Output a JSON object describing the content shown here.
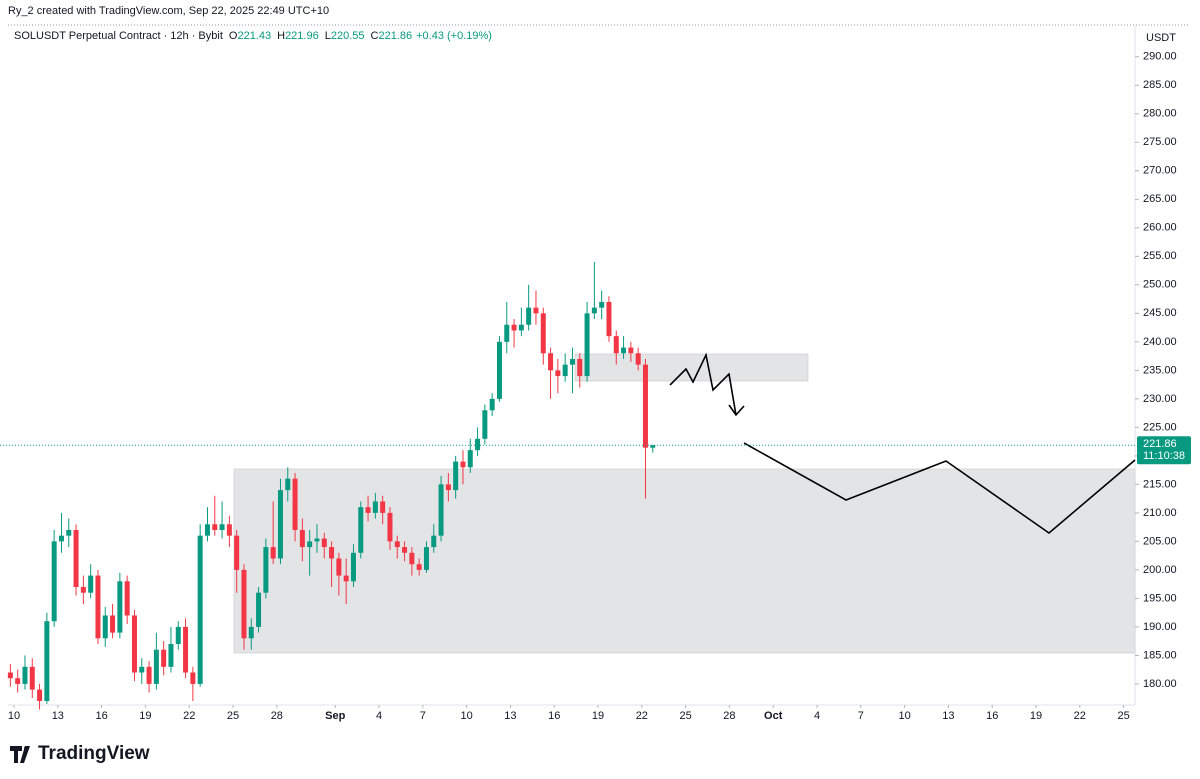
{
  "header": "Ry_2 created with TradingView.com, Sep 22, 2025 22:49 UTC+10",
  "legend": {
    "symbol": "SOLUSDT Perpetual Contract · 12h · Bybit",
    "ohlc": [
      {
        "label": "O",
        "value": "221.43"
      },
      {
        "label": "H",
        "value": "221.96"
      },
      {
        "label": "L",
        "value": "220.55"
      },
      {
        "label": "C",
        "value": "221.86"
      }
    ],
    "change": "+0.43 (+0.19%)"
  },
  "brand": "TradingView",
  "chart_data": {
    "type": "candlestick",
    "y_axis_label": "USDT",
    "up_color": "#089981",
    "down_color": "#f23645",
    "last_price": {
      "value": 221.86,
      "label": "221.86",
      "countdown": "11:10:38"
    },
    "x": [
      -0.5,
      0,
      0.5,
      1,
      1.5,
      2,
      2.5,
      3,
      3.5,
      4,
      4.5,
      5,
      5.5,
      6,
      6.5,
      7,
      7.5,
      8,
      8.5,
      9,
      9.5,
      10,
      10.5,
      11,
      11.5,
      12,
      12.5,
      13,
      13.5,
      14,
      14.5,
      15,
      15.5,
      16,
      16.5,
      17,
      17.5,
      18,
      18.5,
      19,
      19.5,
      20,
      20.5,
      21,
      21.5,
      22,
      22.5,
      23,
      23.5,
      24,
      24.5,
      25,
      25.5,
      26,
      26.5,
      27,
      27.5,
      28,
      28.5,
      29,
      29.5,
      30,
      30.5,
      31,
      31.5,
      32,
      32.5,
      33,
      33.5,
      34,
      34.5,
      35,
      35.5,
      36,
      36.5,
      37,
      37.5,
      38,
      38.5,
      39,
      39.5,
      40,
      40.5,
      41,
      41.5,
      42,
      42.5,
      43,
      43.5
    ],
    "open": [
      182,
      181,
      180,
      183,
      179,
      177,
      191,
      205,
      206,
      207,
      197,
      196,
      199,
      188,
      192,
      189,
      198,
      192,
      182,
      183,
      180,
      186,
      183,
      187,
      190,
      182,
      180,
      206,
      208,
      207,
      208,
      206,
      200,
      188,
      190,
      196,
      204,
      202,
      214,
      216,
      207,
      204,
      205,
      205.5,
      204,
      202,
      199,
      198,
      203,
      211,
      210,
      212,
      210,
      205,
      204,
      203,
      201,
      200,
      204,
      206,
      215,
      214,
      219,
      218,
      221,
      223,
      228,
      230,
      240,
      243,
      242,
      243,
      246,
      245,
      238,
      235,
      234,
      236,
      237,
      234,
      245,
      246,
      247,
      241,
      238,
      239,
      238,
      236,
      221.43
    ],
    "high": [
      183.5,
      182.5,
      185,
      184.5,
      180,
      192.5,
      207,
      210,
      209,
      208,
      199,
      201,
      200,
      193.5,
      194,
      199.5,
      199,
      193,
      184.5,
      184,
      189,
      187.5,
      190,
      191,
      191.5,
      183,
      208,
      211,
      213,
      212,
      209.5,
      207,
      201,
      191.5,
      197,
      205.5,
      212,
      216,
      218,
      217,
      209,
      207,
      208,
      206.5,
      205,
      203,
      202,
      204.5,
      212,
      213,
      213.5,
      213,
      211,
      206,
      205,
      204,
      202,
      205,
      208,
      216.5,
      217,
      220,
      221,
      223,
      225,
      229,
      231,
      241,
      247,
      244,
      246,
      250,
      249,
      246,
      239,
      237,
      238,
      239,
      238,
      247,
      254,
      249,
      248,
      242,
      241,
      240,
      239,
      237,
      221.96
    ],
    "low": [
      179.5,
      178.5,
      179,
      177.5,
      175.5,
      176.5,
      190,
      203,
      204,
      195.5,
      194,
      195,
      187,
      186.5,
      188,
      188,
      190.5,
      180.5,
      180,
      178.5,
      179,
      181.5,
      182,
      186,
      181,
      177,
      179.5,
      205,
      206,
      205.5,
      204,
      196,
      186,
      186,
      189,
      195,
      201,
      201,
      212,
      205,
      201.5,
      199,
      203,
      202,
      197,
      195.5,
      194,
      197,
      202,
      208.5,
      209,
      208,
      203.5,
      202,
      201.5,
      199,
      199,
      199.5,
      203,
      205,
      212,
      212.5,
      215,
      217,
      220,
      222,
      227,
      229.5,
      238,
      239,
      241,
      242,
      243,
      236,
      230,
      231,
      233,
      231,
      232,
      233,
      244,
      244,
      240,
      236,
      237,
      236.5,
      235,
      212.5,
      220.55
    ],
    "close": [
      181,
      180,
      183,
      179,
      177,
      191,
      205,
      206,
      207,
      197,
      196,
      199,
      188,
      192,
      189,
      198,
      192,
      182,
      183,
      180,
      186,
      183,
      187,
      190,
      182,
      180,
      206,
      208,
      207,
      208,
      206,
      200,
      188,
      190,
      196,
      204,
      202,
      214,
      216,
      207,
      204,
      205,
      205.5,
      204,
      202,
      199,
      198,
      203,
      211,
      210,
      212,
      210,
      205,
      204,
      203,
      201,
      200,
      204,
      206,
      215,
      214,
      219,
      218,
      221,
      223,
      228,
      230,
      240,
      243,
      242,
      243,
      246,
      245,
      238,
      235,
      234,
      236,
      237,
      234,
      245,
      246,
      247,
      241,
      238,
      239,
      238,
      236,
      221.43,
      221.86
    ],
    "xlim": [
      -0.96,
      76.78
    ],
    "xticks": [
      {
        "value": 0,
        "label": "10"
      },
      {
        "value": 3,
        "label": "13"
      },
      {
        "value": 6,
        "label": "16"
      },
      {
        "value": 9,
        "label": "19"
      },
      {
        "value": 12,
        "label": "22"
      },
      {
        "value": 15,
        "label": "25"
      },
      {
        "value": 18,
        "label": "28"
      },
      {
        "value": 22,
        "label": "Sep"
      },
      {
        "value": 25,
        "label": "4"
      },
      {
        "value": 28,
        "label": "7"
      },
      {
        "value": 31,
        "label": "10"
      },
      {
        "value": 34,
        "label": "13"
      },
      {
        "value": 37,
        "label": "16"
      },
      {
        "value": 40,
        "label": "19"
      },
      {
        "value": 43,
        "label": "22"
      },
      {
        "value": 46,
        "label": "25"
      },
      {
        "value": 49,
        "label": "28"
      },
      {
        "value": 52,
        "label": "Oct"
      },
      {
        "value": 55,
        "label": "4"
      },
      {
        "value": 58,
        "label": "7"
      },
      {
        "value": 61,
        "label": "10"
      },
      {
        "value": 64,
        "label": "13"
      },
      {
        "value": 67,
        "label": "16"
      },
      {
        "value": 70,
        "label": "19"
      },
      {
        "value": 73,
        "label": "22"
      },
      {
        "value": 76,
        "label": "25"
      }
    ],
    "ylim": [
      176.3,
      294.7
    ],
    "yticks": [
      {
        "value": 180,
        "label": "180.00"
      },
      {
        "value": 185,
        "label": "185.00"
      },
      {
        "value": 190,
        "label": "190.00"
      },
      {
        "value": 195,
        "label": "195.00"
      },
      {
        "value": 200,
        "label": "200.00"
      },
      {
        "value": 205,
        "label": "205.00"
      },
      {
        "value": 210,
        "label": "210.00"
      },
      {
        "value": 215,
        "label": "215.00"
      },
      {
        "value": 220,
        "label": "220.00"
      },
      {
        "value": 225,
        "label": "225.00"
      },
      {
        "value": 230,
        "label": "230.00"
      },
      {
        "value": 235,
        "label": "235.00"
      },
      {
        "value": 240,
        "label": "240.00"
      },
      {
        "value": 245,
        "label": "245.00"
      },
      {
        "value": 250,
        "label": "250.00"
      },
      {
        "value": 255,
        "label": "255.00"
      },
      {
        "value": 260,
        "label": "260.00"
      },
      {
        "value": 265,
        "label": "265.00"
      },
      {
        "value": 270,
        "label": "270.00"
      },
      {
        "value": 275,
        "label": "275.00"
      },
      {
        "value": 280,
        "label": "280.00"
      },
      {
        "value": 285,
        "label": "285.00"
      },
      {
        "value": 290,
        "label": "290.00"
      }
    ]
  }
}
